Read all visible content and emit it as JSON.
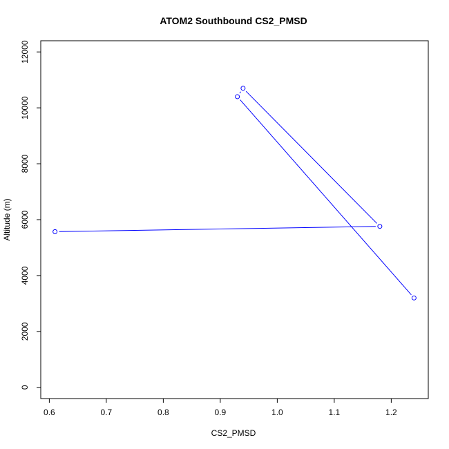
{
  "chart_data": {
    "type": "line",
    "title": "ATOM2 Southbound CS2_PMSD",
    "xlabel": "CS2_PMSD",
    "ylabel": "Altitude (m)",
    "xlim": [
      0.585,
      1.265
    ],
    "ylim": [
      -400,
      12400
    ],
    "x_ticks": [
      0.6,
      0.7,
      0.8,
      0.9,
      1.0,
      1.1,
      1.2
    ],
    "x_tick_labels": [
      "0.6",
      "0.7",
      "0.8",
      "0.9",
      "1.0",
      "1.1",
      "1.2"
    ],
    "y_ticks": [
      0,
      2000,
      4000,
      6000,
      8000,
      10000,
      12000
    ],
    "y_tick_labels": [
      "0",
      "2000",
      "4000",
      "6000",
      "8000",
      "10000",
      "12000"
    ],
    "grid": false,
    "series": [
      {
        "color": "#0000ff",
        "marker": "open-circle",
        "points": [
          {
            "x": 1.24,
            "y": 3200
          },
          {
            "x": 0.93,
            "y": 10400
          },
          {
            "x": 0.94,
            "y": 10700
          },
          {
            "x": 1.18,
            "y": 5760
          },
          {
            "x": 0.61,
            "y": 5570
          }
        ]
      }
    ]
  }
}
